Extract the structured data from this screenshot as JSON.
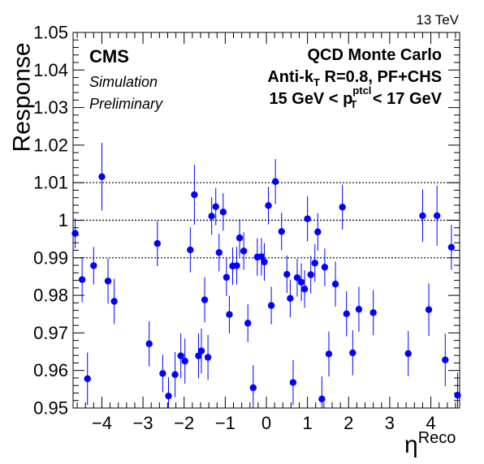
{
  "header": {
    "energy": "13 TeV"
  },
  "labels": {
    "experiment": "CMS",
    "simulation": "Simulation",
    "preliminary": "Preliminary",
    "generator": "QCD Monte Carlo",
    "algo_prefix": "Anti-k",
    "algo_sub": "T",
    "algo_suffix": " R=0.8, PF+CHS",
    "pt_low": "15 GeV < p",
    "pt_sup": "ptcl",
    "pt_sub": "T",
    "pt_high": " < 17 GeV"
  },
  "chart_data": {
    "type": "scatter",
    "xlabel": "η",
    "xlabel_sup": "Reco",
    "ylabel": "Response",
    "xlim": [
      -4.7,
      4.7
    ],
    "ylim": [
      0.95,
      1.05
    ],
    "xticks": [
      -4,
      -3,
      -2,
      -1,
      0,
      1,
      2,
      3,
      4
    ],
    "xtick_labels": [
      "−4",
      "−3",
      "−2",
      "−1",
      "0",
      "1",
      "2",
      "3",
      "4"
    ],
    "yticks": [
      0.95,
      0.96,
      0.97,
      0.98,
      0.99,
      1.0,
      1.01,
      1.02,
      1.03,
      1.04,
      1.05
    ],
    "ytick_labels": [
      "0.95",
      "0.96",
      "0.97",
      "0.98",
      "0.99",
      "1",
      "1.01",
      "1.02",
      "1.03",
      "1.04",
      "1.05"
    ],
    "reference_lines": [
      0.99,
      1.0,
      1.01
    ],
    "marker_color": "#0000ff",
    "points": [
      {
        "x": -4.65,
        "y": 0.9965,
        "err": 0.004
      },
      {
        "x": -4.48,
        "y": 0.9842,
        "err": 0.006
      },
      {
        "x": -4.35,
        "y": 0.9578,
        "err": 0.007
      },
      {
        "x": -4.2,
        "y": 0.9879,
        "err": 0.005
      },
      {
        "x": -4.0,
        "y": 1.0116,
        "err": 0.009
      },
      {
        "x": -3.85,
        "y": 0.9838,
        "err": 0.006
      },
      {
        "x": -3.7,
        "y": 0.9784,
        "err": 0.006
      },
      {
        "x": -2.85,
        "y": 0.9671,
        "err": 0.006
      },
      {
        "x": -2.65,
        "y": 0.9938,
        "err": 0.006
      },
      {
        "x": -2.52,
        "y": 0.9592,
        "err": 0.005
      },
      {
        "x": -2.38,
        "y": 0.9532,
        "err": 0.005
      },
      {
        "x": -2.22,
        "y": 0.9589,
        "err": 0.006
      },
      {
        "x": -2.08,
        "y": 0.9639,
        "err": 0.006
      },
      {
        "x": -1.98,
        "y": 0.9625,
        "err": 0.006
      },
      {
        "x": -1.85,
        "y": 0.9921,
        "err": 0.006
      },
      {
        "x": -1.75,
        "y": 1.0068,
        "err": 0.008
      },
      {
        "x": -1.65,
        "y": 0.9639,
        "err": 0.006
      },
      {
        "x": -1.58,
        "y": 0.9652,
        "err": 0.006
      },
      {
        "x": -1.5,
        "y": 0.9788,
        "err": 0.006
      },
      {
        "x": -1.42,
        "y": 0.9635,
        "err": 0.006
      },
      {
        "x": -1.33,
        "y": 1.0011,
        "err": 0.005
      },
      {
        "x": -1.23,
        "y": 1.0036,
        "err": 0.005
      },
      {
        "x": -1.15,
        "y": 0.9914,
        "err": 0.005
      },
      {
        "x": -1.05,
        "y": 1.0022,
        "err": 0.005
      },
      {
        "x": -0.97,
        "y": 0.9848,
        "err": 0.005
      },
      {
        "x": -0.9,
        "y": 0.9749,
        "err": 0.005
      },
      {
        "x": -0.82,
        "y": 0.9878,
        "err": 0.005
      },
      {
        "x": -0.72,
        "y": 0.9879,
        "err": 0.005
      },
      {
        "x": -0.65,
        "y": 0.9953,
        "err": 0.005
      },
      {
        "x": -0.55,
        "y": 0.9918,
        "err": 0.005
      },
      {
        "x": -0.45,
        "y": 0.9726,
        "err": 0.005
      },
      {
        "x": -0.32,
        "y": 0.9554,
        "err": 0.006
      },
      {
        "x": -0.22,
        "y": 0.9902,
        "err": 0.005
      },
      {
        "x": -0.12,
        "y": 0.9903,
        "err": 0.005
      },
      {
        "x": -0.05,
        "y": 0.9889,
        "err": 0.005
      },
      {
        "x": 0.05,
        "y": 1.0039,
        "err": 0.005
      },
      {
        "x": 0.12,
        "y": 0.9773,
        "err": 0.005
      },
      {
        "x": 0.22,
        "y": 1.0103,
        "err": 0.006
      },
      {
        "x": 0.37,
        "y": 0.997,
        "err": 0.005
      },
      {
        "x": 0.5,
        "y": 0.9856,
        "err": 0.005
      },
      {
        "x": 0.58,
        "y": 0.9792,
        "err": 0.005
      },
      {
        "x": 0.65,
        "y": 0.9568,
        "err": 0.006
      },
      {
        "x": 0.75,
        "y": 0.9847,
        "err": 0.005
      },
      {
        "x": 0.85,
        "y": 0.9835,
        "err": 0.005
      },
      {
        "x": 0.93,
        "y": 0.9817,
        "err": 0.005
      },
      {
        "x": 1.0,
        "y": 1.0004,
        "err": 0.006
      },
      {
        "x": 1.08,
        "y": 0.9855,
        "err": 0.005
      },
      {
        "x": 1.18,
        "y": 0.9886,
        "err": 0.005
      },
      {
        "x": 1.25,
        "y": 0.9969,
        "err": 0.005
      },
      {
        "x": 1.35,
        "y": 0.9524,
        "err": 0.006
      },
      {
        "x": 1.42,
        "y": 0.9875,
        "err": 0.005
      },
      {
        "x": 1.52,
        "y": 0.9644,
        "err": 0.006
      },
      {
        "x": 1.68,
        "y": 0.983,
        "err": 0.006
      },
      {
        "x": 1.85,
        "y": 1.0035,
        "err": 0.006
      },
      {
        "x": 1.95,
        "y": 0.9751,
        "err": 0.006
      },
      {
        "x": 2.1,
        "y": 0.9647,
        "err": 0.006
      },
      {
        "x": 2.25,
        "y": 0.9763,
        "err": 0.006
      },
      {
        "x": 2.6,
        "y": 0.9754,
        "err": 0.006
      },
      {
        "x": 3.45,
        "y": 0.9645,
        "err": 0.006
      },
      {
        "x": 3.8,
        "y": 1.0012,
        "err": 0.007
      },
      {
        "x": 3.95,
        "y": 0.9762,
        "err": 0.007
      },
      {
        "x": 4.15,
        "y": 1.0012,
        "err": 0.008
      },
      {
        "x": 4.35,
        "y": 0.9628,
        "err": 0.007
      },
      {
        "x": 4.5,
        "y": 0.9928,
        "err": 0.006
      },
      {
        "x": 4.65,
        "y": 0.9534,
        "err": 0.006
      }
    ]
  }
}
